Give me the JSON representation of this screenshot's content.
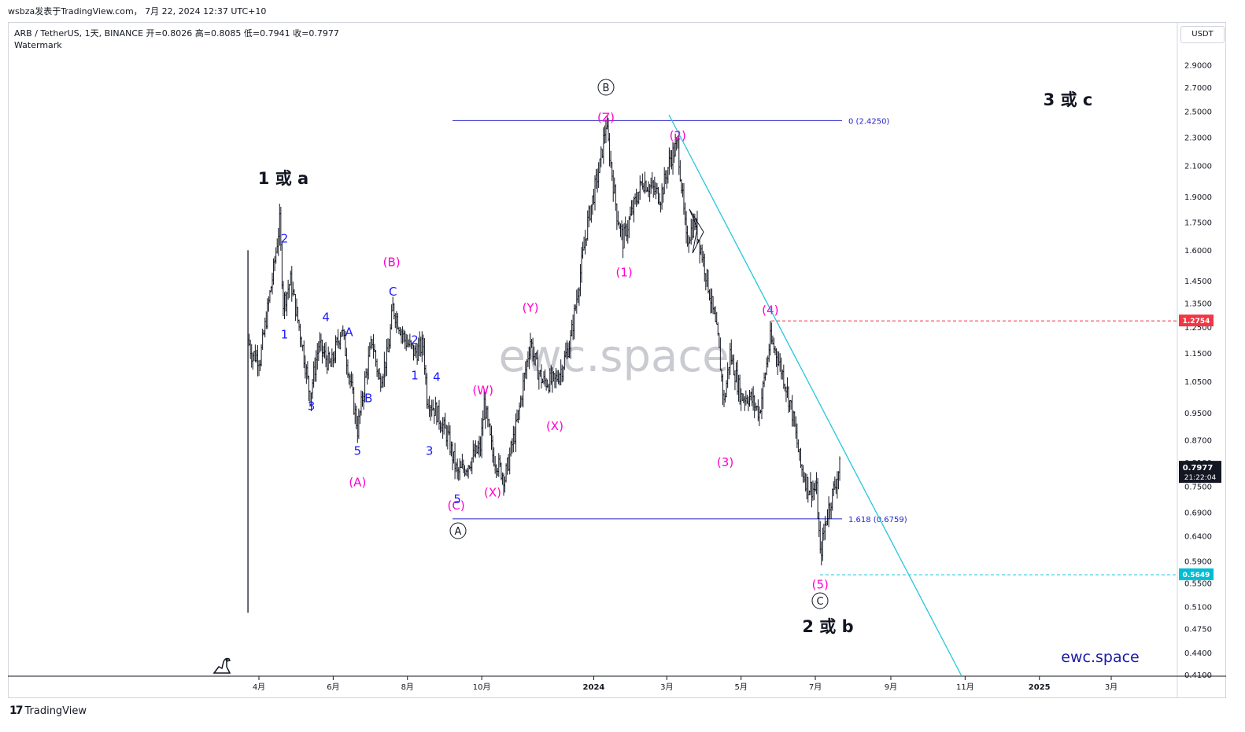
{
  "header": {
    "top_line": "wsbza发表于TradingView.com， 7月 22, 2024 12:37 UTC+10",
    "symbol_line": "ARB / TetherUS, 1天, BINANCE  开=0.8026  高=0.8085  低=0.7941  收=0.7977",
    "watermark_label": "Watermark",
    "currency": "USDT"
  },
  "footer": {
    "brand": "TradingView"
  },
  "colors": {
    "candles": "#131722",
    "fib": "#2424c8",
    "trendline": "#26c6da",
    "resistance": "#f23645",
    "support": "#26c6da",
    "pink": "#ff00cc",
    "blue": "#1a1aff"
  },
  "chart_data": {
    "type": "candlestick",
    "symbol": "ARB / TetherUS",
    "interval": "1天",
    "exchange": "BINANCE",
    "ohlc_last": {
      "open": 0.8026,
      "high": 0.8085,
      "low": 0.7941,
      "close": 0.7977
    },
    "y_scale": "log",
    "ylim": [
      0.41,
      3.0
    ],
    "y_ticks": [
      0.41,
      0.44,
      0.475,
      0.51,
      0.55,
      0.59,
      0.64,
      0.69,
      0.75,
      0.81,
      0.87,
      0.95,
      1.05,
      1.15,
      1.25,
      1.35,
      1.45,
      1.6,
      1.75,
      1.9,
      2.1,
      2.3,
      2.5,
      2.7,
      2.9
    ],
    "y_tick_labels": [
      "0.4100",
      "0.4400",
      "0.4750",
      "0.5100",
      "0.5500",
      "0.5900",
      "0.6400",
      "0.6900",
      "0.7500",
      "0.8100",
      "0.8700",
      "0.9500",
      "1.0500",
      "1.1500",
      "1.2500",
      "1.3500",
      "1.4500",
      "1.6000",
      "1.7500",
      "1.9000",
      "2.1000",
      "2.3000",
      "2.5000",
      "2.7000",
      "2.9000"
    ],
    "x_range": [
      "2023-03-10",
      "2025-04-20"
    ],
    "x_ticks": [
      {
        "date": "2023-04-01",
        "label": "4月"
      },
      {
        "date": "2023-06-01",
        "label": "6月"
      },
      {
        "date": "2023-08-01",
        "label": "8月"
      },
      {
        "date": "2023-10-01",
        "label": "10月"
      },
      {
        "date": "2024-01-01",
        "label": "2024"
      },
      {
        "date": "2024-03-01",
        "label": "3月"
      },
      {
        "date": "2024-05-01",
        "label": "5月"
      },
      {
        "date": "2024-07-01",
        "label": "7月"
      },
      {
        "date": "2024-09-01",
        "label": "9月"
      },
      {
        "date": "2024-11-01",
        "label": "11月"
      },
      {
        "date": "2025-01-01",
        "label": "2025"
      },
      {
        "date": "2025-03-01",
        "label": "3月"
      }
    ],
    "price_path": [
      [
        "2023-03-23",
        1.2
      ],
      [
        "2023-03-26",
        1.15
      ],
      [
        "2023-04-02",
        1.13
      ],
      [
        "2023-04-13",
        1.5
      ],
      [
        "2023-04-18",
        1.75
      ],
      [
        "2023-04-21",
        1.35
      ],
      [
        "2023-04-27",
        1.45
      ],
      [
        "2023-05-06",
        1.2
      ],
      [
        "2023-05-13",
        1.0
      ],
      [
        "2023-05-20",
        1.18
      ],
      [
        "2023-05-30",
        1.1
      ],
      [
        "2023-06-08",
        1.25
      ],
      [
        "2023-06-15",
        1.05
      ],
      [
        "2023-06-21",
        0.9
      ],
      [
        "2023-06-27",
        1.05
      ],
      [
        "2023-07-03",
        1.2
      ],
      [
        "2023-07-09",
        1.05
      ],
      [
        "2023-07-16",
        1.15
      ],
      [
        "2023-07-20",
        1.33
      ],
      [
        "2023-07-30",
        1.2
      ],
      [
        "2023-08-07",
        1.15
      ],
      [
        "2023-08-14",
        1.18
      ],
      [
        "2023-08-17",
        1.0
      ],
      [
        "2023-08-25",
        0.95
      ],
      [
        "2023-09-03",
        0.88
      ],
      [
        "2023-09-11",
        0.78
      ],
      [
        "2023-09-18",
        0.8
      ],
      [
        "2023-09-30",
        0.85
      ],
      [
        "2023-10-03",
        0.98
      ],
      [
        "2023-10-10",
        0.83
      ],
      [
        "2023-10-20",
        0.77
      ],
      [
        "2023-10-30",
        0.92
      ],
      [
        "2023-11-10",
        1.2
      ],
      [
        "2023-11-15",
        1.1
      ],
      [
        "2023-11-20",
        1.05
      ],
      [
        "2023-11-30",
        1.05
      ],
      [
        "2023-12-06",
        1.1
      ],
      [
        "2023-12-13",
        1.2
      ],
      [
        "2023-12-20",
        1.45
      ],
      [
        "2023-12-27",
        1.75
      ],
      [
        "2024-01-06",
        2.1
      ],
      [
        "2024-01-11",
        2.4
      ],
      [
        "2024-01-20",
        1.8
      ],
      [
        "2024-01-25",
        1.65
      ],
      [
        "2024-02-01",
        1.8
      ],
      [
        "2024-02-10",
        2.0
      ],
      [
        "2024-02-18",
        1.95
      ],
      [
        "2024-02-25",
        1.9
      ],
      [
        "2024-03-04",
        2.15
      ],
      [
        "2024-03-10",
        2.25
      ],
      [
        "2024-03-17",
        1.65
      ],
      [
        "2024-03-24",
        1.75
      ],
      [
        "2024-03-31",
        1.55
      ],
      [
        "2024-04-05",
        1.4
      ],
      [
        "2024-04-12",
        1.2
      ],
      [
        "2024-04-17",
        0.98
      ],
      [
        "2024-04-22",
        1.15
      ],
      [
        "2024-05-01",
        1.0
      ],
      [
        "2024-05-08",
        1.0
      ],
      [
        "2024-05-16",
        0.95
      ],
      [
        "2024-05-25",
        1.2
      ],
      [
        "2024-05-30",
        1.15
      ],
      [
        "2024-06-06",
        1.05
      ],
      [
        "2024-06-12",
        0.95
      ],
      [
        "2024-06-19",
        0.8
      ],
      [
        "2024-06-25",
        0.75
      ],
      [
        "2024-07-02",
        0.74
      ],
      [
        "2024-07-05",
        0.6
      ],
      [
        "2024-07-10",
        0.68
      ],
      [
        "2024-07-21",
        0.7977
      ]
    ]
  },
  "levels": {
    "fib_0": {
      "price": 2.425,
      "label": "0 (2.4250)"
    },
    "fib_1618": {
      "price": 0.6759,
      "label": "1.618 (0.6759)"
    },
    "resistance": {
      "price": 1.2754,
      "label": "1.2754"
    },
    "support": {
      "price": 0.5649,
      "label": "0.5649"
    },
    "last_price": {
      "price": 0.7977,
      "label": "0.7977",
      "countdown": "21:22:04"
    }
  },
  "annotations": {
    "big_1a": "1 或 a",
    "big_2b": "2 或 b",
    "big_3c": "3 或 c",
    "circle_A": "A",
    "circle_B": "B",
    "circle_C": "C",
    "pink": [
      {
        "text": "(A)",
        "date": "2023-06-21",
        "price": 0.76
      },
      {
        "text": "(B)",
        "date": "2023-07-19",
        "price": 1.54
      },
      {
        "text": "(C)",
        "date": "2023-09-10",
        "price": 0.705
      },
      {
        "text": "(W)",
        "date": "2023-10-02",
        "price": 1.02
      },
      {
        "text": "(X)",
        "date": "2023-10-10",
        "price": 0.735
      },
      {
        "text": "(Y)",
        "date": "2023-11-10",
        "price": 1.33
      },
      {
        "text": "(X)",
        "date": "2023-11-30",
        "price": 0.91
      },
      {
        "text": "(Z)",
        "date": "2024-01-11",
        "price": 2.45
      },
      {
        "text": "(1)",
        "date": "2024-01-26",
        "price": 1.49
      },
      {
        "text": "(2)",
        "date": "2024-03-10",
        "price": 2.31
      },
      {
        "text": "(3)",
        "date": "2024-04-18",
        "price": 0.81
      },
      {
        "text": "(4)",
        "date": "2024-05-25",
        "price": 1.32
      },
      {
        "text": "(5)",
        "date": "2024-07-05",
        "price": 0.547
      }
    ],
    "blue": [
      {
        "text": "2",
        "date": "2023-04-22",
        "price": 1.66
      },
      {
        "text": "1",
        "date": "2023-04-22",
        "price": 1.22
      },
      {
        "text": "3",
        "date": "2023-05-14",
        "price": 0.97
      },
      {
        "text": "4",
        "date": "2023-05-26",
        "price": 1.29
      },
      {
        "text": "A",
        "date": "2023-06-14",
        "price": 1.23
      },
      {
        "text": "5",
        "date": "2023-06-21",
        "price": 0.84
      },
      {
        "text": "B",
        "date": "2023-06-30",
        "price": 0.995
      },
      {
        "text": "C",
        "date": "2023-07-20",
        "price": 1.4
      },
      {
        "text": "2",
        "date": "2023-08-07",
        "price": 1.2
      },
      {
        "text": "1",
        "date": "2023-08-07",
        "price": 1.07
      },
      {
        "text": "4",
        "date": "2023-08-25",
        "price": 1.065
      },
      {
        "text": "3",
        "date": "2023-08-19",
        "price": 0.84
      },
      {
        "text": "5",
        "date": "2023-09-11",
        "price": 0.72
      }
    ]
  },
  "brand_watermark": "ewc.space",
  "signature": "ewc.space"
}
